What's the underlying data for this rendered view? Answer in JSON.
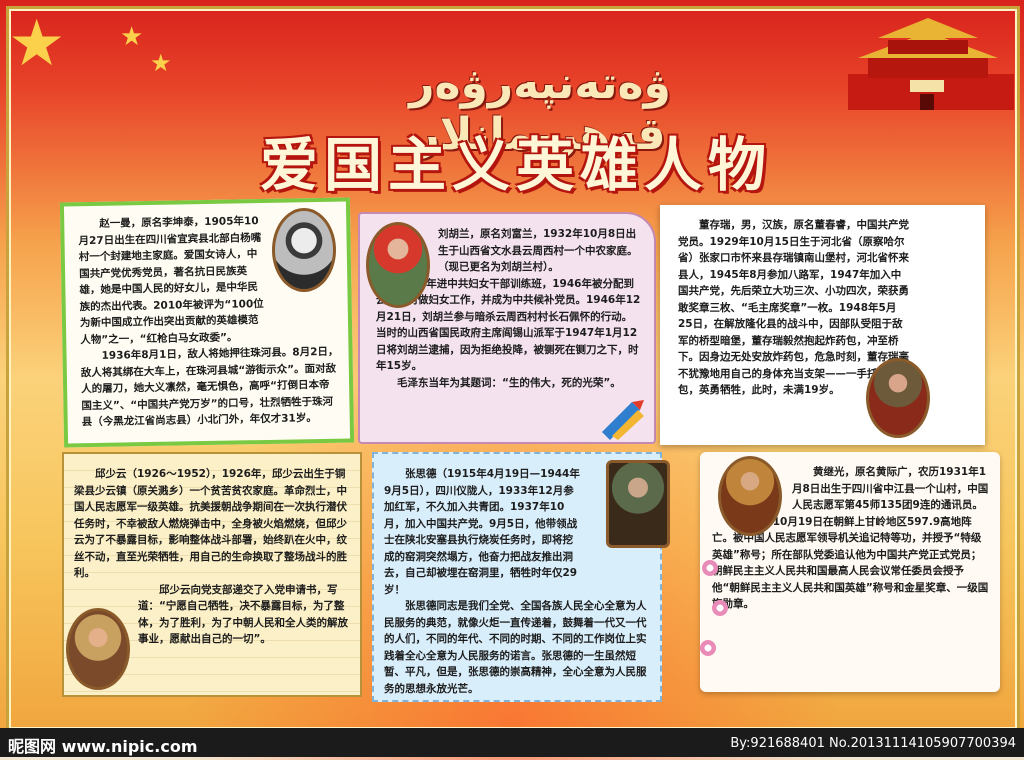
{
  "header": {
    "uyghur_title": "ۋەتەنپەرۋەر قەھرىمانلار",
    "title": "爱国主义英雄人物"
  },
  "panels": [
    {
      "paragraphs": [
        "赵一曼，原名李坤泰，1905年10月27日出生在四川省宜宾县北部白杨嘴村一个封建地主家庭。爱国女诗人，中国共产党优秀党员，著名抗日民族英雄，她是中国人民的好女儿，是中华民族的杰出代表。2010年被评为“100位为新中国成立作出突出贡献的英雄模范人物”之一，“红枪白马女政委”。",
        "1936年8月1日，敌人将她押往珠河县。8月2日，敌人将其绑在大车上，在珠河县城“游街示众”。面对敌人的屠刀，她大义凛然，毫无惧色，高呼“打倒日本帝国主义”、“中国共产党万岁”的口号，壮烈牺牲于珠河县（今黑龙江省尚志县）小北门外，年仅才31岁。"
      ]
    },
    {
      "paragraphs": [
        "刘胡兰，原名刘富兰，1932年10月8日出生于山西省文水县云周西村一个中农家庭。（现已更名为刘胡兰村）。",
        "1945年进中共妇女干部训练班，1946年被分配到云周西村做妇女工作，并成为中共候补党员。1946年12月21日，刘胡兰参与暗杀云周西村村长石佩怀的行动。当时的山西省国民政府主席阎锡山派军于1947年1月12日将刘胡兰逮捕，因为拒绝投降，被铡死在铡刀之下，时年15岁。",
        "毛泽东当年为其题词：“生的伟大，死的光荣”。"
      ]
    },
    {
      "paragraphs": [
        "董存瑞，男，汉族，原名董春睿，中国共产党党员。1929年10月15日生于河北省（原察哈尔省）张家口市怀来县存瑞镇南山堡村，河北省怀来县人，1945年8月参加八路军，1947年加入中国共产党，先后荣立大功三次、小功四次，荣获勇敢奖章三枚、“毛主席奖章”一枚。1948年5月25日，在解放隆化县的战斗中，因部队受阻于敌军的桥型暗堡，董存瑞毅然抱起炸药包，冲至桥下。因身边无处安放炸药包，危急时刻，董存瑞毫不犹豫地用自己的身体充当支架——一手托炸药包，英勇牺牲，此时，未满19岁。"
      ]
    },
    {
      "paragraphs": [
        "邱少云（1926～1952），1926年，邱少云出生于铜梁县少云镇（原关溅乡）一个贫苦贫农家庭。革命烈士，中国人民志愿军一级英雄。抗美援朝战争期间在一次执行潜伏任务时，不幸被敌人燃烧弹击中，全身被火焰燃烧，但邱少云为了不暴露目标，影响整体战斗部署，始终趴在火中，纹丝不动，直至光荣牺牲，用自己的生命换取了整场战斗的胜利。",
        "邱少云向党支部递交了入党申请书，写道：“宁愿自己牺牲，决不暴露目标，为了整体，为了胜利，为了中朝人民和全人类的解放事业，愿献出自己的一切”。"
      ]
    },
    {
      "paragraphs": [
        "张思德（1915年4月19日—1944年9月5日），四川仪陇人，1933年12月参加红军，不久加入共青团。1937年10月，加入中国共产党。9月5日，他带领战士在陕北安塞县执行烧炭任务时，即将挖成的窑洞突然塌方，他奋力把战友推出洞去，自己却被埋在窑洞里，牺牲时年仅29岁！",
        "张思德同志是我们全党、全国各族人民全心全意为人民服务的典范，就像火炬一直传递着，鼓舞着一代又一代的人们，不同的年代、不同的时期、不同的工作岗位上实践着全心全意为人民服务的诺言。张思德的一生虽然短暂、平凡，但是，张思德的崇高精神，全心全意为人民服务的思想永放光芒。"
      ]
    },
    {
      "paragraphs": [
        "黄继光，原名黄际广，农历1931年1月8日出生于四川省中江县一个山村，中国人民志愿军第45师135团9连的通讯员。",
        "1952年10月19日在朝鲜上甘岭地区597.9高地阵亡。被中国人民志愿军领导机关追记特等功，并授予“特级英雄”称号；所在部队党委追认他为中国共产党正式党员；朝鲜民主主义人民共和国最高人民会议常任委员会授予他“朝鲜民主主义人民共和国英雄”称号和金星奖章、一级国旗勋章。"
      ]
    }
  ],
  "watermark": {
    "site": "昵图网 www.nipic.com",
    "id": "By:921688401 No.20131114105907700394"
  }
}
